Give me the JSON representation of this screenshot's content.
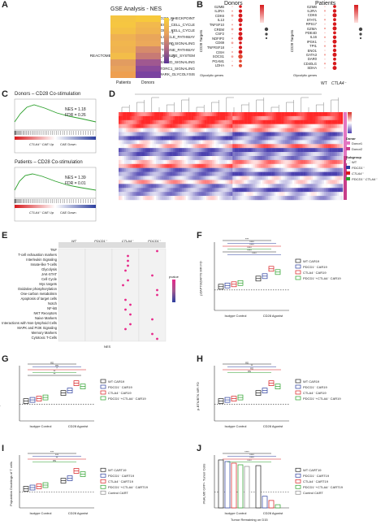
{
  "panels": {
    "A": {
      "letter": "A",
      "title": "GSE Analysis - NES",
      "rows": [
        "HALLMARK_G2M_CHECKPOINT",
        "KEGG_CELL_CYCLE",
        "REACTOME_CELL_CYCLE",
        "BIOCARTA_CELLCYCLE_PATHWAY",
        "REACTOME_INTERFERON_SIGNALING",
        "BIOCARTA_CYTOKINE_PATHWAY",
        "REACTOME_CYTOKINE_SIGNALING_IN_IMMUNE_SYSTEM",
        "REACTOME_MTORC1_MEDIATED_SIGNALING",
        "HALLMARK_MTORC1_SIGNALING",
        "HALLMARK_GLYCOLYSIS"
      ],
      "cols": [
        "Patients",
        "Donors"
      ],
      "ticks": [
        "2",
        "1",
        "0",
        "-1"
      ]
    },
    "B": {
      "letter": "B",
      "left_title": "Donors",
      "right_title": "Patients",
      "ylabel": "CD28 Targets",
      "left_genes": [
        "GZMB",
        "IL2RA",
        "CDK6",
        "IL13",
        "TNFSF10",
        "CREM",
        "CSF2",
        "NDFIP2",
        "CD69",
        "TNFRSF18",
        "CISH",
        "SOCS1",
        "PGAM1",
        "LDHA"
      ],
      "right_genes": [
        "GZMB",
        "IL2RA",
        "CDK6",
        "STAT1",
        "RPS17",
        "GZMA",
        "PDE4D",
        "IL16",
        "IPGK1",
        "TPI1",
        "ENO1",
        "GATA3",
        "DAR0",
        "CD40LG",
        "SDHA"
      ],
      "glyco_label": "Glycolytic genes",
      "xcols": [
        "WT",
        "CTLA4⁻"
      ]
    },
    "C": {
      "letter": "C",
      "top_title": "Donors – CD28 Co-stimulation",
      "top_nes": "NES = 1.18",
      "top_fdr": "FDR = 0.26",
      "bottom_title": "Patients – CD28 Co-stimulation",
      "bottom_nes": "NES = 1.39",
      "bottom_fdr": "FDR = 0.01",
      "up": "CTLA4⁻ CAE Up",
      "down": "CAE Down"
    },
    "D": {
      "letter": "D",
      "legend_donor": "Donor",
      "donor1": "Donor1",
      "donor2": "Donor2",
      "legend_subgroup": "Subgroup",
      "wt": "WT",
      "pdcd1": "PDCD1⁻",
      "ctla4": "CTLA4⁻",
      "double": "PDCD1⁻ CTLA4⁻"
    },
    "E": {
      "letter": "E",
      "cols": [
        "WT",
        "PDCD1⁻",
        "CTLA4⁻",
        "PDCD1⁻ CTLA4⁻"
      ],
      "rows": [
        "TNF",
        "T-cell exhaustion markers",
        "Interleukin Signaling",
        "Innate-like T-cells",
        "Glycolysis",
        "JAK-STAT",
        "Cell Cycle",
        "Myc targets",
        "Oxidative phosphorylation",
        "One-carbon metabolism",
        "Apoptosis of target cells",
        "Notch",
        "NF-kB",
        "NKT Receptors",
        "Naive Markers",
        "Interactions with Non-lymphoid Cells",
        "MAPK and PI3K Signaling",
        "Memory Markers",
        "Cytotoxic T-Cells"
      ],
      "xlabel": "NES",
      "legend": "pvalue"
    },
    "F": {
      "letter": "F",
      "ylabel": "pZAP70/ZAP70 MFI FD",
      "groups": [
        "Isotype Control",
        "CD28 Agonist"
      ],
      "legend": [
        "WT CAR19",
        "PDCD1⁻ CAR19",
        "CTLA4⁻ CAR19",
        "PDCD1⁻+CTLA4⁻ CAR19"
      ],
      "stars": [
        "***",
        "****",
        "****",
        "****",
        "****",
        "****"
      ]
    },
    "G": {
      "letter": "G",
      "ylabel": "pLCK MFI FD",
      "groups": [
        "Isotype Control",
        "CD28 Agonist"
      ],
      "legend": [
        "WT CAR19",
        "PDCD1⁻ CAR19",
        "CTLA4⁻ CAR19",
        "PDCD1⁻+CTLA4⁻ CAR19"
      ],
      "stars": [
        "ns",
        "ns",
        "*",
        "**",
        "**"
      ]
    },
    "H": {
      "letter": "H",
      "ylabel": "p-BTK/BTK MFI FD",
      "groups": [
        "Isotype Control",
        "CD28 Agonist"
      ],
      "legend": [
        "WT CAR19",
        "PDCD1⁻ CAR19",
        "CTLA4⁻ CAR19",
        "PDCD1⁻+CTLA4⁻ CAR19"
      ],
      "stars": [
        "ns",
        "**",
        "ns",
        "ns"
      ]
    },
    "I": {
      "letter": "I",
      "ylabel": "Population Doublings of T cells",
      "groups": [
        "Isotype Control",
        "CD28 Agonist"
      ],
      "legend": [
        "WT CART19",
        "PDCD1⁻ CART19",
        "CTLA4⁻ CART19",
        "PDCD1⁻+CTLA4⁻ CART19",
        "Control CART"
      ],
      "stars": [
        "***",
        "***",
        "**",
        "ns"
      ]
    },
    "J": {
      "letter": "J",
      "ylabel": "#NALM6 GFP+ Tumor Cells",
      "groups": [
        "Isotype Control",
        "CD28 Agonist"
      ],
      "xlabel": "Tumor Remaining on D15",
      "legend": [
        "WT CART19",
        "PDCD1⁻ CART19",
        "CTLA4⁻ CART19",
        "PDCD1⁻+CTLA4⁻ CART19",
        "Control CART"
      ],
      "stars": [
        "****",
        "****",
        "****",
        "****"
      ],
      "yticks": [
        "10⁶",
        "10⁵",
        "10⁴",
        "10³",
        "10²",
        "10¹",
        "10⁰"
      ]
    }
  },
  "colors": {
    "red": "#d7191c",
    "blue": "#2c3e9e",
    "green": "#2ca02c",
    "magenta": "#c83e8a",
    "heat_high": "#d73027",
    "heat_low": "#4b3fb0"
  }
}
